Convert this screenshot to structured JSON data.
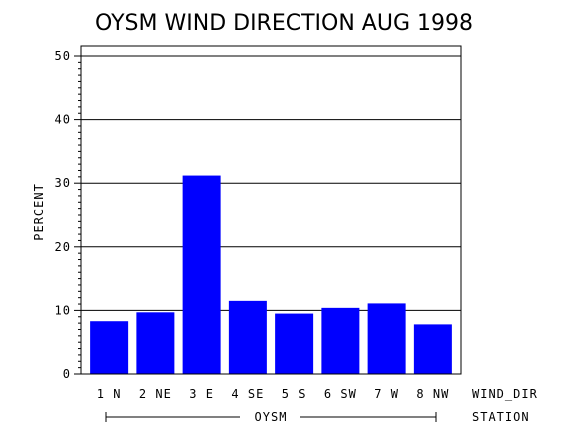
{
  "chart_data": {
    "type": "bar",
    "title": "OYSM WIND DIRECTION AUG 1998",
    "ylabel": "PERCENT",
    "xlabel": "WIND_DIR",
    "group_label": "OYSM",
    "group_axis_label": "STATION",
    "ylim": [
      0,
      50
    ],
    "yticks": [
      0,
      10,
      20,
      30,
      40,
      50
    ],
    "categories": [
      "1 N",
      "2 NE",
      "3 E",
      "4 SE",
      "5 S",
      "6 SW",
      "7 W",
      "8 NW"
    ],
    "values": [
      8.3,
      9.7,
      31.2,
      11.5,
      9.5,
      10.4,
      11.1,
      7.8
    ],
    "bar_color": "#0000ff",
    "grid": true
  }
}
